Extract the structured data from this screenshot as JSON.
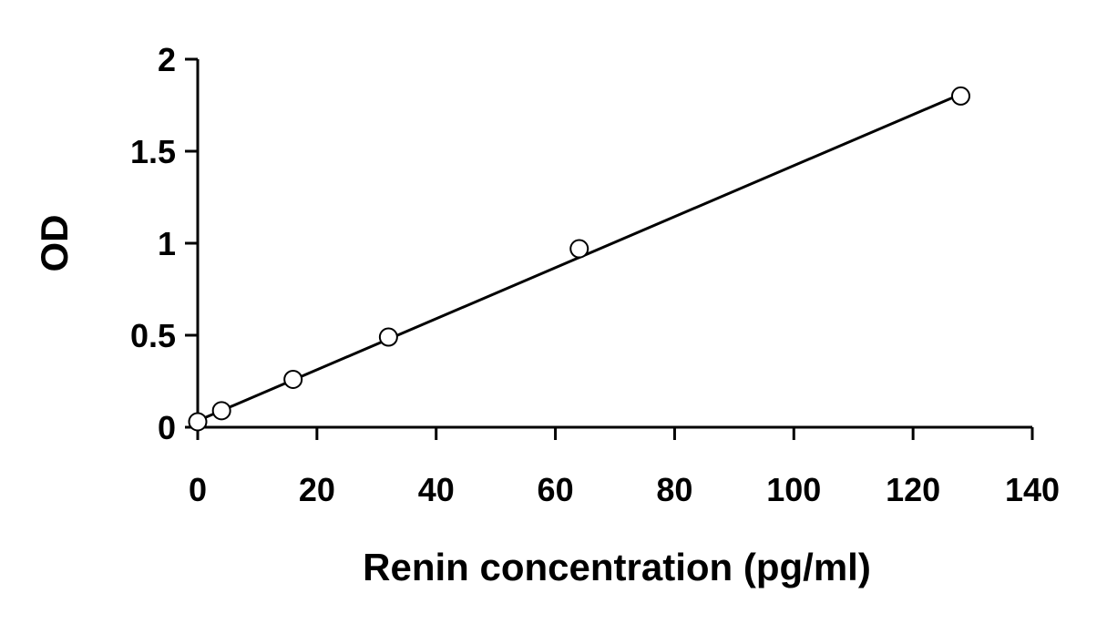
{
  "chart_data": {
    "type": "scatter",
    "title": "",
    "xlabel": "Renin concentration (pg/ml)",
    "ylabel": "OD",
    "xlim": [
      0,
      140
    ],
    "ylim": [
      0,
      2
    ],
    "x_ticks": [
      0,
      20,
      40,
      60,
      80,
      100,
      120,
      140
    ],
    "y_ticks": [
      0,
      0.5,
      1,
      1.5,
      2
    ],
    "x_tick_labels": [
      "0",
      "20",
      "40",
      "60",
      "80",
      "100",
      "120",
      "140"
    ],
    "y_tick_labels": [
      "0",
      "0.5",
      "1",
      "1.5",
      "2"
    ],
    "grid": false,
    "legend": "none",
    "series": [
      {
        "marker": "open-circle",
        "color": "#000000",
        "points": [
          {
            "x": 0,
            "y": 0.03
          },
          {
            "x": 4,
            "y": 0.09
          },
          {
            "x": 16,
            "y": 0.26
          },
          {
            "x": 32,
            "y": 0.49
          },
          {
            "x": 64,
            "y": 0.97
          },
          {
            "x": 128,
            "y": 1.8
          }
        ]
      }
    ],
    "trendline": {
      "type": "linear",
      "color": "#000000",
      "x_start": 0,
      "y_start": 0.035,
      "x_end": 128,
      "y_end": 1.81
    }
  }
}
